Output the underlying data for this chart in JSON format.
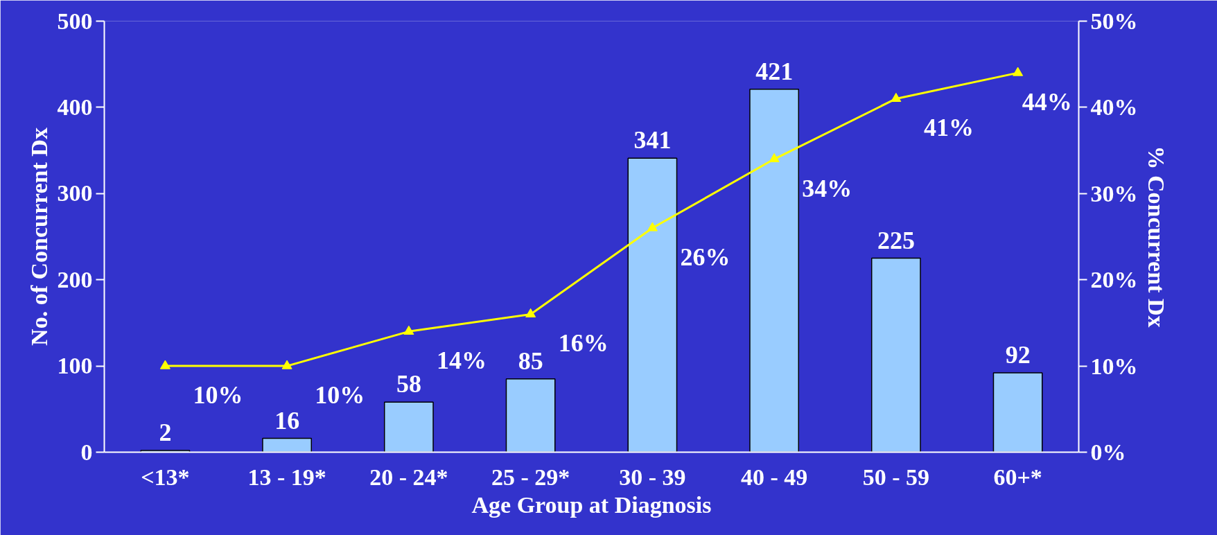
{
  "chart_data": {
    "type": "bar",
    "xlabel": "Age Group at Diagnosis",
    "ylabel": "No. of Concurrent Dx",
    "y2label": "% Concurrent Dx",
    "categories": [
      "<13*",
      "13 - 19*",
      "20 - 24*",
      "25 - 29*",
      "30 - 39",
      "40 - 49",
      "50 - 59",
      "60+*"
    ],
    "series": [
      {
        "color": "#99ccff",
        "values": [
          2,
          16,
          58,
          85,
          341,
          421,
          225,
          92
        ]
      },
      {
        "type": "line",
        "axis": "y2",
        "color": "#ffff00",
        "marker": "triangle",
        "values": [
          10,
          10,
          14,
          16,
          26,
          34,
          41,
          44
        ],
        "value_labels": [
          "10%",
          "10%",
          "14%",
          "16%",
          "26%",
          "34%",
          "41%",
          "44%"
        ]
      }
    ],
    "ylim": [
      0,
      500
    ],
    "yticks": [
      0,
      100,
      200,
      300,
      400,
      500
    ],
    "y2lim": [
      0,
      50
    ],
    "y2ticks": [
      {
        "value": 0,
        "label": "0%"
      },
      {
        "value": 10,
        "label": "10%"
      },
      {
        "value": 20,
        "label": "20%"
      },
      {
        "value": 30,
        "label": "30%"
      },
      {
        "value": 40,
        "label": "40%"
      },
      {
        "value": 50,
        "label": "50%"
      }
    ],
    "data_labels": true,
    "grid": false
  }
}
